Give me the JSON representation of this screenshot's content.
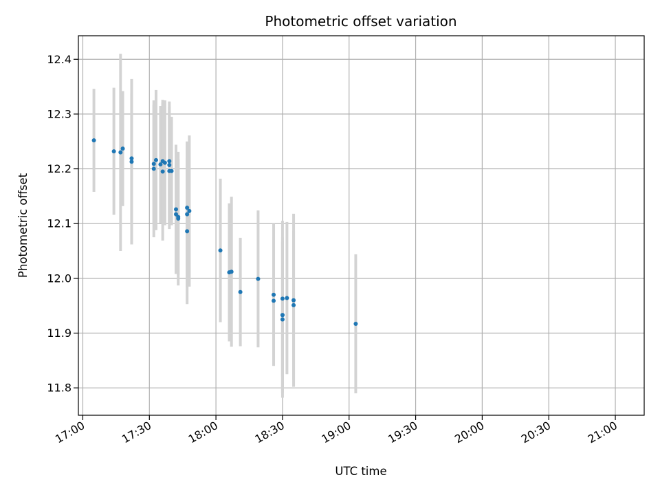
{
  "chart_data": {
    "type": "scatter",
    "title": "Photometric offset variation",
    "xlabel": "UTC time",
    "ylabel": "Photometric offset",
    "x_unit": "HH:MM (UTC)",
    "xlim": [
      "16:58",
      "21:13"
    ],
    "ylim": [
      11.75,
      12.443
    ],
    "x_ticks": [
      "17:00",
      "17:30",
      "18:00",
      "18:30",
      "19:00",
      "19:30",
      "20:00",
      "20:30",
      "21:00"
    ],
    "y_ticks": [
      11.8,
      11.9,
      12.0,
      12.1,
      12.2,
      12.3,
      12.4
    ],
    "y_tick_labels": [
      "11.8",
      "11.9",
      "12.0",
      "12.1",
      "12.2",
      "12.3",
      "12.4"
    ],
    "grid": true,
    "colors": {
      "point": "#1f77b4",
      "errorbar": "#d3d3d3",
      "grid": "#b0b0b0"
    },
    "points": [
      {
        "x": "17:05",
        "y": 12.252,
        "err": 0.094
      },
      {
        "x": "17:14",
        "y": 12.232,
        "err": 0.116
      },
      {
        "x": "17:17",
        "y": 12.23,
        "err": 0.18
      },
      {
        "x": "17:18",
        "y": 12.237,
        "err": 0.105
      },
      {
        "x": "17:22",
        "y": 12.219,
        "err": 0.119
      },
      {
        "x": "17:22",
        "y": 12.213,
        "err": 0.151
      },
      {
        "x": "17:32",
        "y": 12.209,
        "err": 0.108
      },
      {
        "x": "17:32",
        "y": 12.2,
        "err": 0.125
      },
      {
        "x": "17:33",
        "y": 12.216,
        "err": 0.128
      },
      {
        "x": "17:35",
        "y": 12.208,
        "err": 0.107
      },
      {
        "x": "17:36",
        "y": 12.195,
        "err": 0.126
      },
      {
        "x": "17:36",
        "y": 12.214,
        "err": 0.112
      },
      {
        "x": "17:37",
        "y": 12.211,
        "err": 0.114
      },
      {
        "x": "17:39",
        "y": 12.214,
        "err": 0.109
      },
      {
        "x": "17:39",
        "y": 12.207,
        "err": 0.106
      },
      {
        "x": "17:39",
        "y": 12.196,
        "err": 0.106
      },
      {
        "x": "17:40",
        "y": 12.196,
        "err": 0.099
      },
      {
        "x": "17:42",
        "y": 12.126,
        "err": 0.118
      },
      {
        "x": "17:42",
        "y": 12.117,
        "err": 0.098
      },
      {
        "x": "17:43",
        "y": 12.112,
        "err": 0.106
      },
      {
        "x": "17:43",
        "y": 12.109,
        "err": 0.122
      },
      {
        "x": "17:47",
        "y": 12.129,
        "err": 0.12
      },
      {
        "x": "17:47",
        "y": 12.117,
        "err": 0.133
      },
      {
        "x": "17:48",
        "y": 12.123,
        "err": 0.138
      },
      {
        "x": "17:47",
        "y": 12.086,
        "err": 0.133
      },
      {
        "x": "18:02",
        "y": 12.051,
        "err": 0.131
      },
      {
        "x": "18:06",
        "y": 12.011,
        "err": 0.126
      },
      {
        "x": "18:07",
        "y": 12.012,
        "err": 0.137
      },
      {
        "x": "18:11",
        "y": 11.975,
        "err": 0.099
      },
      {
        "x": "18:19",
        "y": 11.999,
        "err": 0.125
      },
      {
        "x": "18:26",
        "y": 11.97,
        "err": 0.13
      },
      {
        "x": "18:26",
        "y": 11.959,
        "err": 0.117
      },
      {
        "x": "18:30",
        "y": 11.963,
        "err": 0.142
      },
      {
        "x": "18:30",
        "y": 11.925,
        "err": 0.143
      },
      {
        "x": "18:30",
        "y": 11.933,
        "err": 0.133
      },
      {
        "x": "18:30",
        "y": 11.933,
        "err": 0.142
      },
      {
        "x": "18:32",
        "y": 11.964,
        "err": 0.139
      },
      {
        "x": "18:35",
        "y": 11.96,
        "err": 0.158
      },
      {
        "x": "18:35",
        "y": 11.951,
        "err": 0.136
      },
      {
        "x": "19:03",
        "y": 11.917,
        "err": 0.127
      }
    ]
  }
}
